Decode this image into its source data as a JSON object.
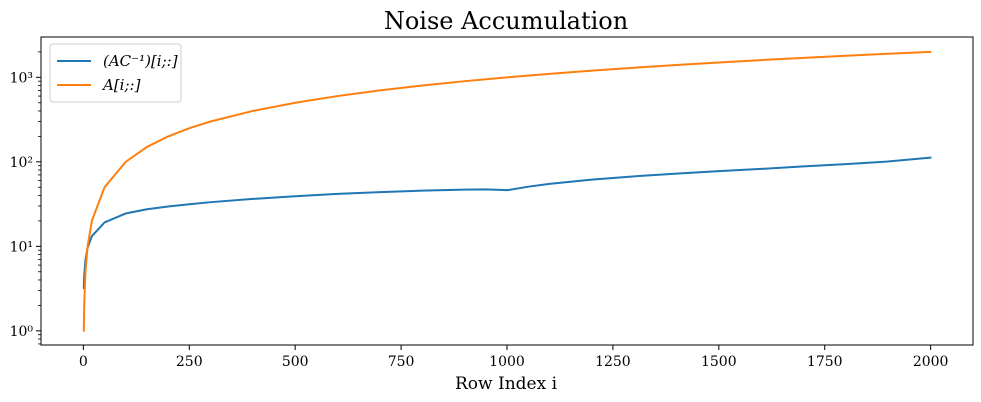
{
  "chart_data": {
    "type": "line",
    "title": "Noise Accumulation",
    "xlabel": "Row Index i",
    "ylabel": "",
    "xlim": [
      -100,
      2100
    ],
    "ylim": [
      0.68,
      3000
    ],
    "yscale": "log",
    "grid": false,
    "legend_position": "top-left",
    "x_ticks": [
      0,
      250,
      500,
      750,
      1000,
      1250,
      1500,
      1750,
      2000
    ],
    "x_tick_labels": [
      "0",
      "250",
      "500",
      "750",
      "1000",
      "1250",
      "1500",
      "1750",
      "2000"
    ],
    "y_ticks": [
      1,
      10,
      100,
      1000
    ],
    "y_tick_labels": [
      "10⁰",
      "10¹",
      "10²",
      "10³"
    ],
    "series": [
      {
        "name": "(AC⁻¹)[i;:]",
        "color": "#1f77b4",
        "x": [
          1,
          2,
          5,
          10,
          20,
          50,
          100,
          150,
          200,
          250,
          300,
          400,
          500,
          600,
          700,
          800,
          900,
          950,
          999,
          1000,
          1050,
          1100,
          1200,
          1300,
          1400,
          1500,
          1600,
          1700,
          1800,
          1900,
          2000
        ],
        "y": [
          3.2,
          4.5,
          6.9,
          9.6,
          13.2,
          19.2,
          24.5,
          27.5,
          29.6,
          31.5,
          33.3,
          36.4,
          39.2,
          41.7,
          43.8,
          45.6,
          46.9,
          47.2,
          46.3,
          46.1,
          50.8,
          54.9,
          61.6,
          67.3,
          72.5,
          77.5,
          82.5,
          88.3,
          94.0,
          101.0,
          112.0
        ]
      },
      {
        "name": "A[i;:]",
        "color": "#ff7f0e",
        "x": [
          1,
          2,
          5,
          10,
          20,
          50,
          100,
          150,
          200,
          250,
          300,
          400,
          500,
          600,
          700,
          800,
          900,
          1000,
          1100,
          1200,
          1300,
          1400,
          1500,
          1600,
          1700,
          1800,
          1900,
          2000
        ],
        "y": [
          1,
          2,
          5,
          10,
          20,
          50,
          100,
          150,
          200,
          250,
          300,
          400,
          500,
          600,
          700,
          800,
          900,
          1000,
          1100,
          1200,
          1300,
          1400,
          1500,
          1600,
          1700,
          1800,
          1900,
          2000
        ]
      }
    ]
  }
}
